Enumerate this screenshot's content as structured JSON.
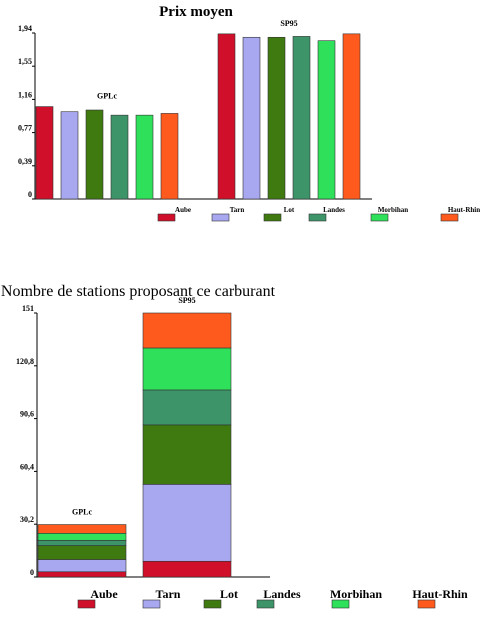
{
  "chart_data": [
    {
      "type": "bar",
      "title": "Prix moyen",
      "categories": [
        "GPLc",
        "SP95"
      ],
      "series": [
        {
          "name": "Aube",
          "color": "#d0102a",
          "values": [
            1.08,
            1.93
          ]
        },
        {
          "name": "Tarn",
          "color": "#a8a8f0",
          "values": [
            1.02,
            1.89
          ]
        },
        {
          "name": "Lot",
          "color": "#3f7a10",
          "values": [
            1.04,
            1.89
          ]
        },
        {
          "name": "Landes",
          "color": "#3d9468",
          "values": [
            0.98,
            1.9
          ]
        },
        {
          "name": "Morbihan",
          "color": "#2ee05a",
          "values": [
            0.98,
            1.85
          ]
        },
        {
          "name": "Haut-Rhin",
          "color": "#ff5a1e",
          "values": [
            1.0,
            1.93
          ]
        }
      ],
      "ylim": [
        0,
        1.94
      ],
      "yticks": [
        "0",
        "0,39",
        "0,77",
        "1,16",
        "1,55",
        "1,94"
      ],
      "legend": "bottom"
    },
    {
      "type": "bar",
      "stacked": true,
      "title": "Nombre de stations proposant ce carburant",
      "categories": [
        "GPLc",
        "SP95"
      ],
      "series": [
        {
          "name": "Aube",
          "color": "#d0102a",
          "values": [
            3,
            9
          ]
        },
        {
          "name": "Tarn",
          "color": "#a8a8f0",
          "values": [
            7,
            44
          ]
        },
        {
          "name": "Lot",
          "color": "#3f7a10",
          "values": [
            8,
            34
          ]
        },
        {
          "name": "Landes",
          "color": "#3d9468",
          "values": [
            3,
            20
          ]
        },
        {
          "name": "Morbihan",
          "color": "#2ee05a",
          "values": [
            4,
            24
          ]
        },
        {
          "name": "Haut-Rhin",
          "color": "#ff5a1e",
          "values": [
            5,
            20
          ]
        }
      ],
      "ylim": [
        0,
        151
      ],
      "yticks": [
        "0",
        "30,2",
        "60,4",
        "90,6",
        "120,8",
        "151"
      ],
      "legend": "bottom"
    }
  ]
}
